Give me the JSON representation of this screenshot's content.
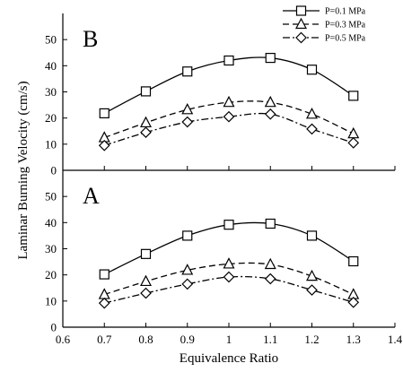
{
  "chart_data": {
    "type": "line",
    "xlabel": "Equivalence Ratio",
    "ylabel": "Laminar Burning Velocity (cm/s)",
    "xlim": [
      0.6,
      1.4
    ],
    "x_ticks": [
      "0.6",
      "0.7",
      "0.8",
      "0.9",
      "1",
      "1.1",
      "1.2",
      "1.3",
      "1.4"
    ],
    "ylim": [
      0,
      60
    ],
    "y_ticks_top": [
      "0",
      "10",
      "20",
      "30",
      "40",
      "50"
    ],
    "y_ticks_bottom": [
      "0",
      "10",
      "20",
      "30",
      "40",
      "50"
    ],
    "legend": {
      "placement": "top-right",
      "entries": [
        {
          "label": "P=0.1 MPa",
          "marker": "square",
          "dash": "solid"
        },
        {
          "label": "P=0.3 MPa",
          "marker": "triangle",
          "dash": "dashed"
        },
        {
          "label": "P=0.5 MPa",
          "marker": "diamond",
          "dash": "dash-dot"
        }
      ]
    },
    "panels": [
      {
        "label": "B",
        "position": "top",
        "x": [
          0.7,
          0.8,
          0.9,
          1.0,
          1.1,
          1.2,
          1.3
        ],
        "series": [
          {
            "name": "P=0.1 MPa",
            "values": [
              21.8,
              30.2,
              37.8,
              42.0,
              43.0,
              38.5,
              28.5
            ]
          },
          {
            "name": "P=0.3 MPa",
            "values": [
              12.5,
              18.2,
              23.2,
              26.0,
              26.0,
              21.5,
              14.0
            ]
          },
          {
            "name": "P=0.5 MPa",
            "values": [
              9.5,
              14.5,
              18.5,
              20.5,
              21.5,
              15.8,
              10.5
            ]
          }
        ]
      },
      {
        "label": "A",
        "position": "bottom",
        "x": [
          0.7,
          0.8,
          0.9,
          1.0,
          1.1,
          1.2,
          1.3
        ],
        "series": [
          {
            "name": "P=0.1 MPa",
            "values": [
              20.2,
              28.0,
              35.0,
              39.2,
              39.6,
              35.0,
              25.2
            ]
          },
          {
            "name": "P=0.3 MPa",
            "values": [
              12.5,
              17.5,
              21.8,
              24.2,
              24.0,
              19.5,
              12.5
            ]
          },
          {
            "name": "P=0.5 MPa",
            "values": [
              9.2,
              13.0,
              16.5,
              19.2,
              18.5,
              14.2,
              9.5
            ]
          }
        ]
      }
    ]
  }
}
